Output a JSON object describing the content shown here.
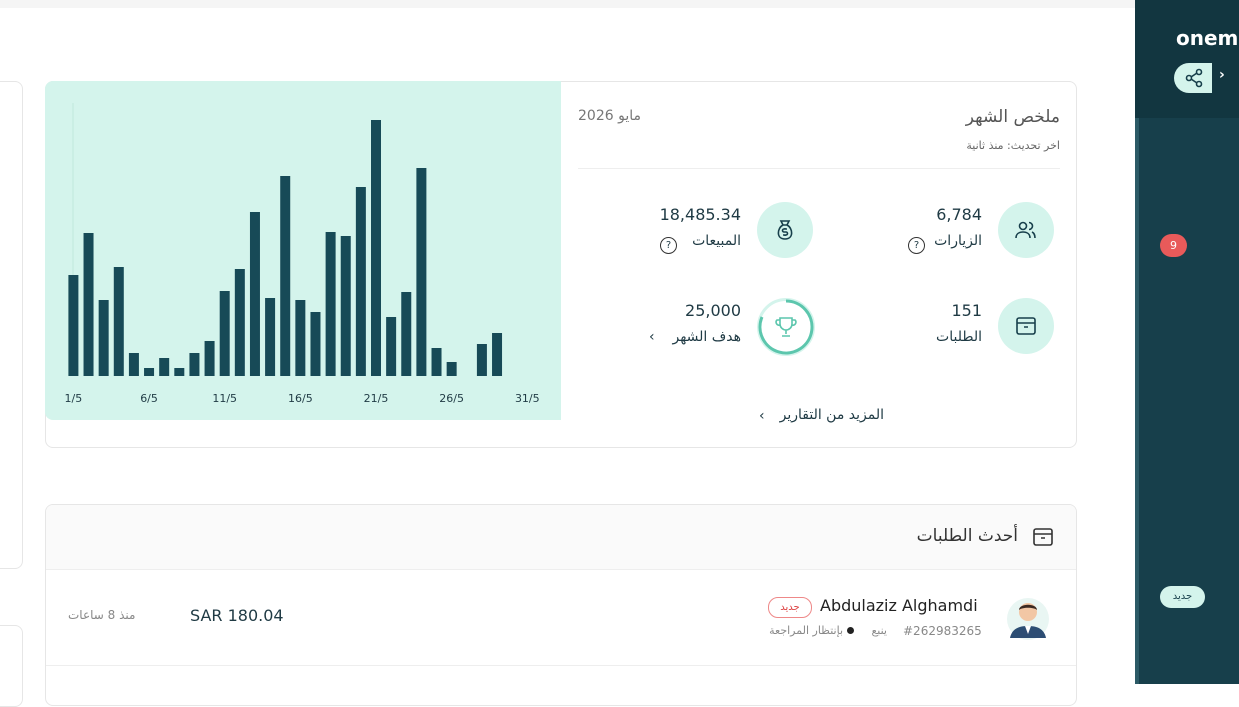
{
  "sidebar": {
    "brand": "oneme",
    "badge": "9",
    "new_label": "جديد"
  },
  "summary": {
    "title": "ملخص الشهر",
    "date": "مايو 2026",
    "updated": "اخر تحديث: منذ ثانية",
    "stats": [
      {
        "value": "6,784",
        "label": "الزيارات"
      },
      {
        "value": "18,485.34",
        "label": "المبيعات"
      },
      {
        "value": "151",
        "label": "الطلبات"
      },
      {
        "value": "25,000",
        "label": "هدف الشهر"
      }
    ],
    "more": "المزيد من التقارير"
  },
  "chart_data": {
    "type": "bar",
    "color": "#174a57",
    "ylim": [
      0,
      280
    ],
    "categories": [
      "1/5",
      null,
      null,
      null,
      null,
      "6/5",
      null,
      null,
      null,
      null,
      "11/5",
      null,
      null,
      null,
      null,
      "16/5",
      null,
      null,
      null,
      null,
      "21/5",
      null,
      null,
      null,
      null,
      "26/5",
      null,
      null,
      null,
      null,
      "31/5"
    ],
    "values": [
      101,
      143,
      76,
      109,
      23,
      8,
      18,
      8,
      23,
      35,
      85,
      107,
      164,
      78,
      200,
      76,
      64,
      144,
      140,
      189,
      256,
      59,
      84,
      208,
      28,
      14,
      null,
      32,
      43,
      null,
      null
    ]
  },
  "orders": {
    "title": "أحدث الطلبات",
    "rows": [
      {
        "name": "Abdulaziz Alghamdi",
        "badge": "جديد",
        "id": "#262983265",
        "city": "ينبع",
        "status": "بإنتظار المراجعة",
        "amount": "SAR 180.04",
        "time": "منذ 8 ساعات"
      }
    ]
  }
}
